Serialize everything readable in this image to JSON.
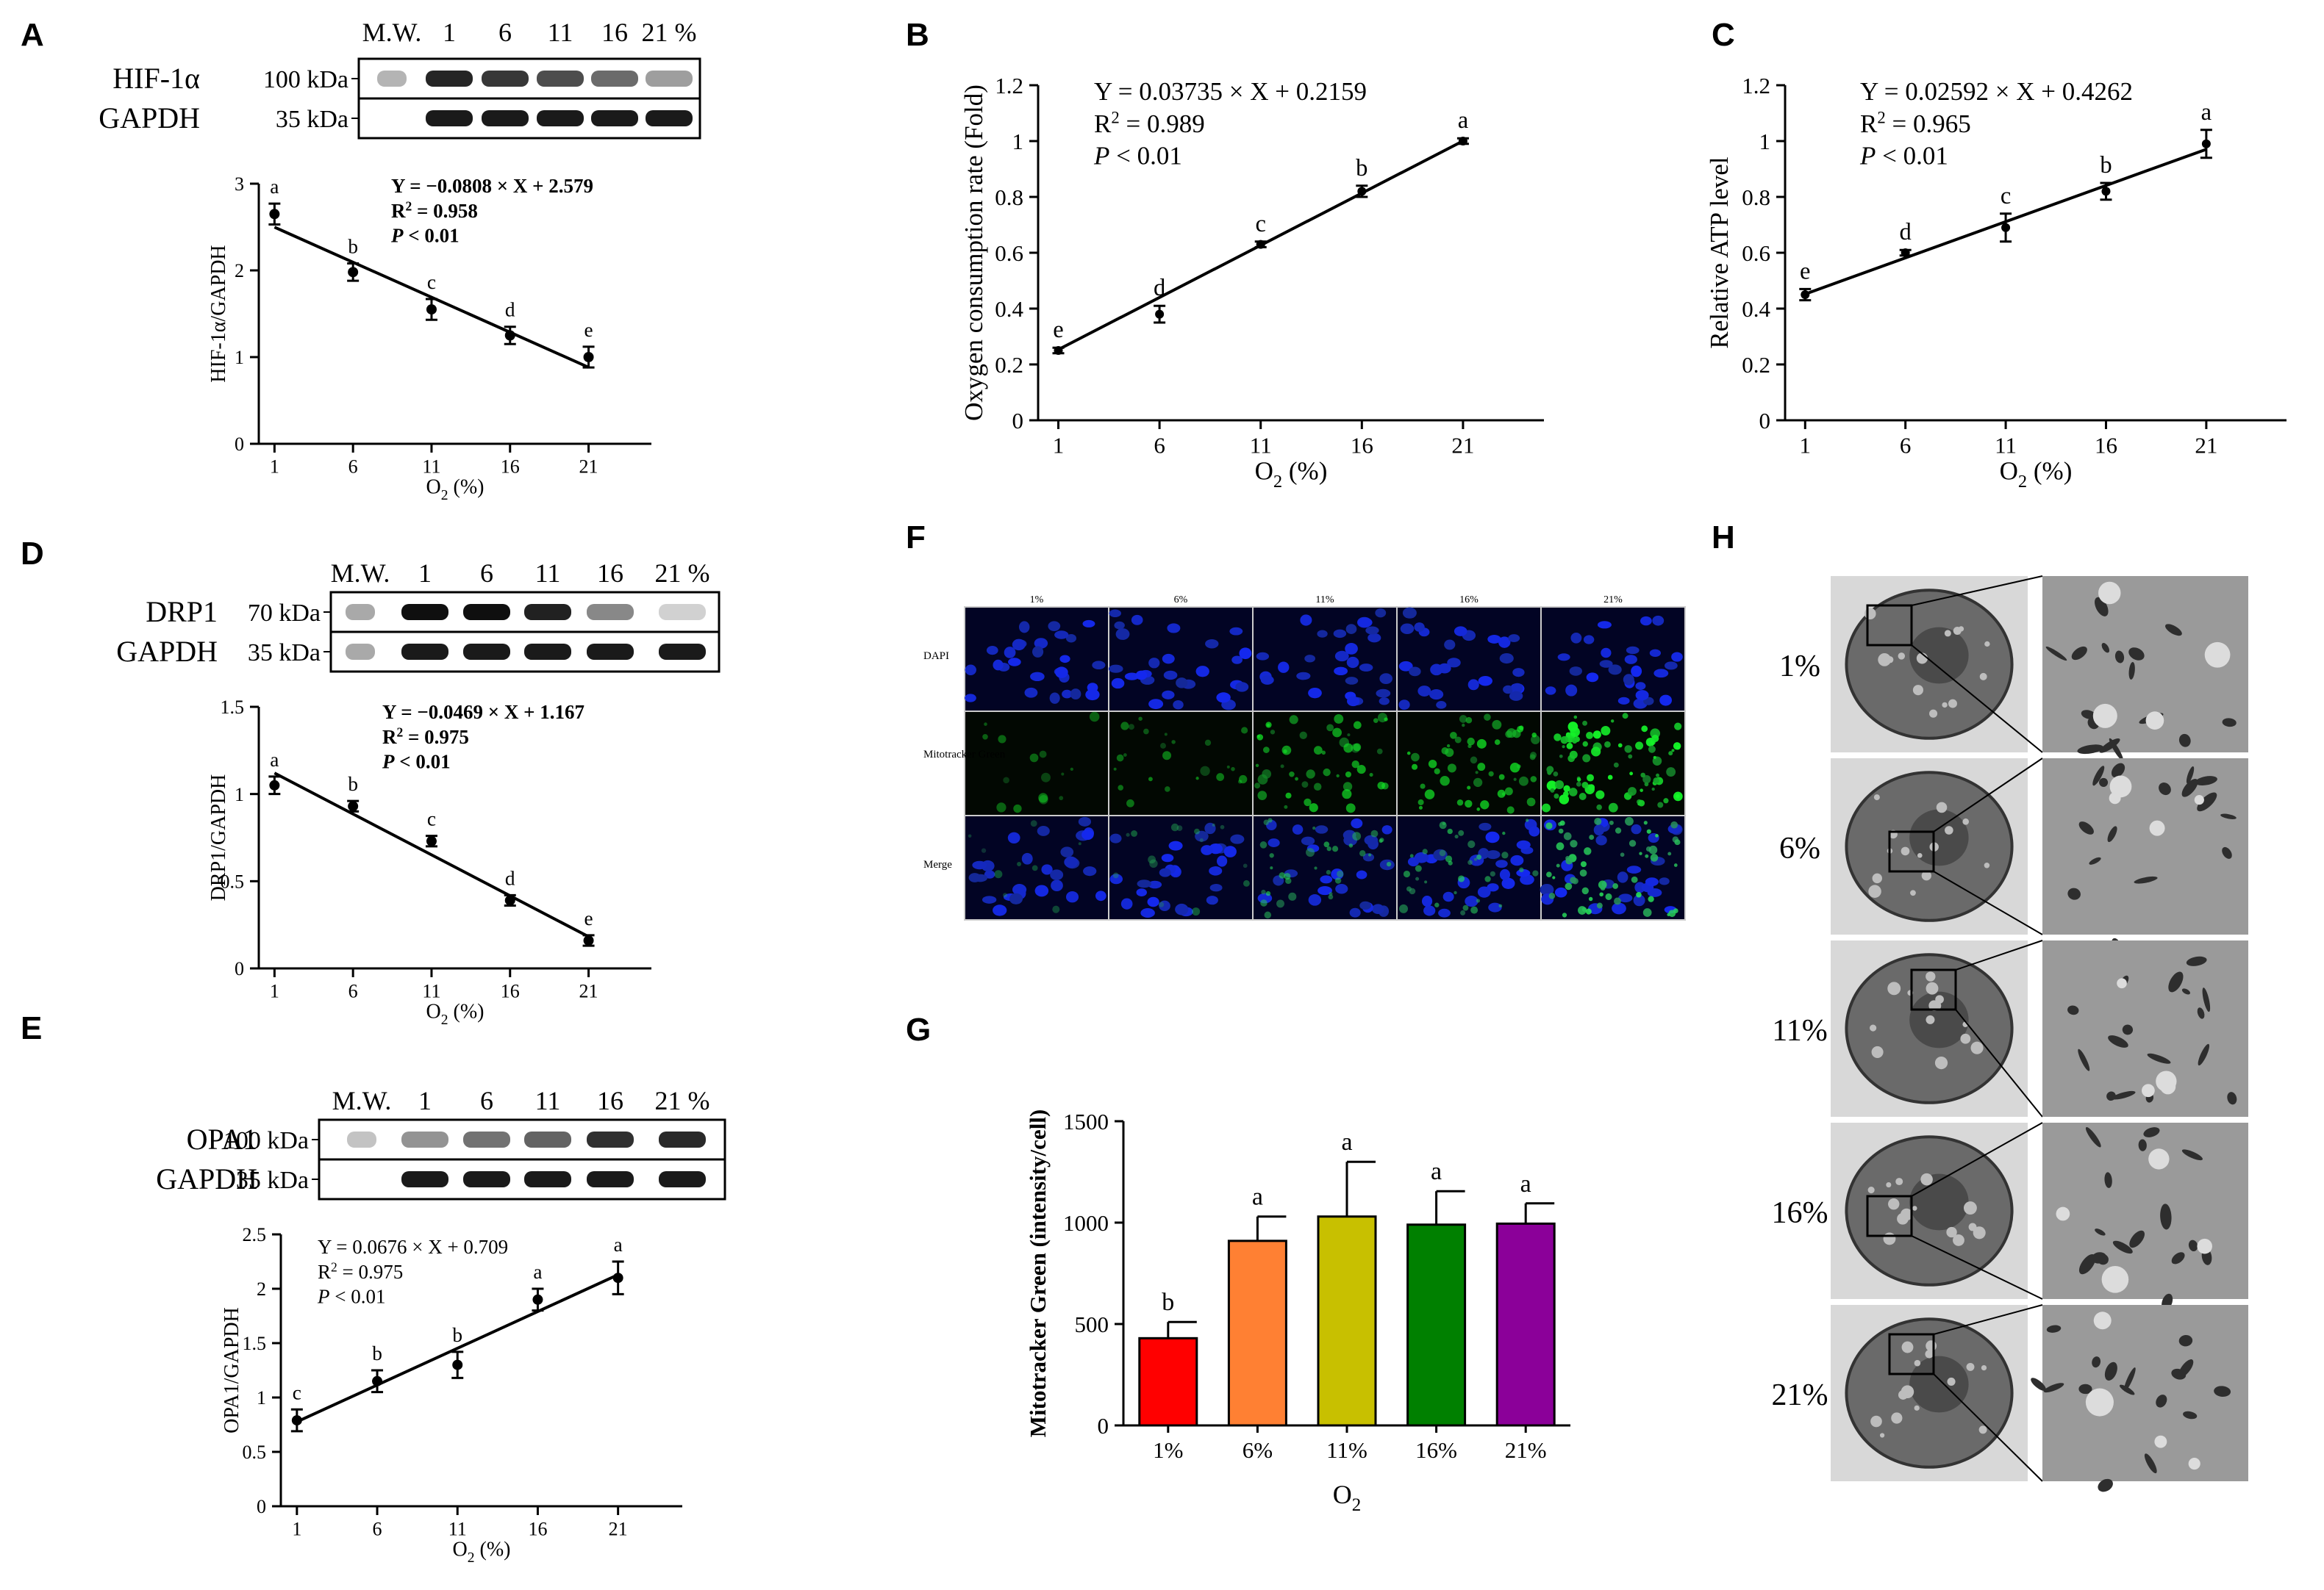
{
  "figure": {
    "panel_letters": [
      "A",
      "B",
      "C",
      "D",
      "E",
      "F",
      "G",
      "H"
    ],
    "blot_a": {
      "lanes": [
        "M.W.",
        "1",
        "6",
        "11",
        "16",
        "21 %"
      ],
      "rows": [
        {
          "protein": "HIF-1α",
          "mw": "100 kDa"
        },
        {
          "protein": "GAPDH",
          "mw": "35 kDa"
        }
      ],
      "intensities": [
        [
          0.25,
          0.9,
          0.82,
          0.72,
          0.58,
          0.35
        ],
        [
          0,
          0.95,
          0.95,
          0.95,
          0.95,
          0.95
        ]
      ]
    },
    "blot_d": {
      "lanes": [
        "M.W.",
        "1",
        "6",
        "11",
        "16",
        "21 %"
      ],
      "rows": [
        {
          "protein": "DRP1",
          "mw": "70 kDa"
        },
        {
          "protein": "GAPDH",
          "mw": "35 kDa"
        }
      ],
      "intensities": [
        [
          0.3,
          1.0,
          1.0,
          0.92,
          0.45,
          0.12
        ],
        [
          0.3,
          0.95,
          0.95,
          0.95,
          0.95,
          0.95
        ]
      ]
    },
    "blot_e": {
      "lanes": [
        "M.W.",
        "1",
        "6",
        "11",
        "16",
        "21 %"
      ],
      "rows": [
        {
          "protein": "OPA1",
          "mw": "100 kDa"
        },
        {
          "protein": "GAPDH",
          "mw": "35 kDa"
        }
      ],
      "intensities": [
        [
          0.18,
          0.4,
          0.55,
          0.62,
          0.85,
          0.88
        ],
        [
          0,
          0.95,
          0.95,
          0.95,
          0.95,
          0.95
        ]
      ]
    },
    "f_panel": {
      "columns": [
        "1%",
        "6%",
        "11%",
        "16%",
        "21%"
      ],
      "rows": [
        "DAPI",
        "Mitotracker Green",
        "Merge"
      ],
      "green_levels": [
        0.05,
        0.15,
        0.45,
        0.5,
        0.9
      ]
    },
    "h_panel": {
      "rows": [
        "1%",
        "6%",
        "11%",
        "16%",
        "21%"
      ]
    }
  },
  "chart_data": [
    {
      "id": "A",
      "type": "line",
      "x": [
        1,
        6,
        11,
        16,
        21
      ],
      "y": [
        2.65,
        1.98,
        1.55,
        1.25,
        1.0
      ],
      "error": [
        0.12,
        0.1,
        0.12,
        0.1,
        0.12
      ],
      "letters": [
        "a",
        "b",
        "c",
        "d",
        "e"
      ],
      "equation": "Y = −0.0808 × X + 2.579",
      "r2_label": "R",
      "r2_sup": "2",
      "r2_value": " = 0.958",
      "p_label": "P",
      "p_value": " < 0.01",
      "fit": {
        "slope": -0.0808,
        "intercept": 2.579
      },
      "ylabel": "HIF-1α/GAPDH",
      "xlabel_main": "O",
      "xlabel_sub": "2",
      "xlabel_tail": "  (%)",
      "ylim": [
        0,
        3
      ],
      "yticks": [
        0,
        1,
        2,
        3
      ],
      "xlim": [
        0,
        25
      ],
      "xticks": [
        1,
        6,
        11,
        16,
        21
      ]
    },
    {
      "id": "B",
      "type": "line",
      "x": [
        1,
        6,
        11,
        16,
        21
      ],
      "y": [
        0.25,
        0.38,
        0.63,
        0.82,
        1.0
      ],
      "error": [
        0.01,
        0.03,
        0.01,
        0.02,
        0.01
      ],
      "letters": [
        "e",
        "d",
        "c",
        "b",
        "a"
      ],
      "equation": "Y = 0.03735 × X + 0.2159",
      "r2_label": "R",
      "r2_sup": "2",
      "r2_value": " = 0.989",
      "p_label": "P",
      "p_value": " < 0.01",
      "fit": {
        "slope": 0.03735,
        "intercept": 0.2159
      },
      "ylabel": "Oxygen consumption rate (Fold)",
      "xlabel_main": "O",
      "xlabel_sub": "2",
      "xlabel_tail": "  (%)",
      "ylim": [
        0,
        1.2
      ],
      "yticks": [
        0.0,
        0.2,
        0.4,
        0.6,
        0.8,
        1.0,
        1.2
      ],
      "xlim": [
        0,
        25
      ],
      "xticks": [
        1,
        6,
        11,
        16,
        21
      ]
    },
    {
      "id": "C",
      "type": "line",
      "x": [
        1,
        6,
        11,
        16,
        21
      ],
      "y": [
        0.45,
        0.6,
        0.69,
        0.82,
        0.99
      ],
      "error": [
        0.02,
        0.01,
        0.05,
        0.03,
        0.05
      ],
      "letters": [
        "e",
        "d",
        "c",
        "b",
        "a"
      ],
      "equation": "Y = 0.02592 × X + 0.4262",
      "r2_label": "R",
      "r2_sup": "2",
      "r2_value": " = 0.965",
      "p_label": "P",
      "p_value": " < 0.01",
      "fit": {
        "slope": 0.02592,
        "intercept": 0.4262
      },
      "ylabel": "Relative ATP level",
      "xlabel_main": "O",
      "xlabel_sub": "2",
      "xlabel_tail": "  (%)",
      "ylim": [
        0,
        1.2
      ],
      "yticks": [
        0.0,
        0.2,
        0.4,
        0.6,
        0.8,
        1.0,
        1.2
      ],
      "xlim": [
        0,
        25
      ],
      "xticks": [
        1,
        6,
        11,
        16,
        21
      ]
    },
    {
      "id": "D",
      "type": "line",
      "x": [
        1,
        6,
        11,
        16,
        21
      ],
      "y": [
        1.05,
        0.93,
        0.73,
        0.39,
        0.16
      ],
      "error": [
        0.05,
        0.03,
        0.03,
        0.03,
        0.03
      ],
      "letters": [
        "a",
        "b",
        "c",
        "d",
        "e"
      ],
      "equation": "Y = −0.0469 × X + 1.167",
      "r2_label": "R",
      "r2_sup": "2",
      "r2_value": " = 0.975",
      "p_label": "P",
      "p_value": " < 0.01",
      "fit": {
        "slope": -0.0469,
        "intercept": 1.167
      },
      "ylabel": "DRP1/GAPDH",
      "xlabel_main": "O",
      "xlabel_sub": "2",
      "xlabel_tail": "  (%)",
      "ylim": [
        0,
        1.5
      ],
      "yticks": [
        0.0,
        0.5,
        1.0,
        1.5
      ],
      "xlim": [
        0,
        25
      ],
      "xticks": [
        1,
        6,
        11,
        16,
        21
      ]
    },
    {
      "id": "E",
      "type": "line",
      "x": [
        1,
        6,
        11,
        16,
        21
      ],
      "y": [
        0.79,
        1.15,
        1.3,
        1.9,
        2.1
      ],
      "error": [
        0.1,
        0.1,
        0.12,
        0.1,
        0.15
      ],
      "letters": [
        "c",
        "b",
        "b",
        "a",
        "a"
      ],
      "equation": "Y = 0.0676 × X + 0.709",
      "r2_label": "R",
      "r2_sup": "2",
      "r2_value": " = 0.975",
      "p_label": "P",
      "p_value": " < 0.01",
      "fit": {
        "slope": 0.0676,
        "intercept": 0.709
      },
      "ylabel": "OPA1/GAPDH",
      "xlabel_main": "O",
      "xlabel_sub": "2",
      "xlabel_tail": "  (%)",
      "ylim": [
        0,
        2.5
      ],
      "yticks": [
        0.0,
        0.5,
        1.0,
        1.5,
        2.0,
        2.5
      ],
      "xlim": [
        0,
        25
      ],
      "xticks": [
        1,
        6,
        11,
        16,
        21
      ]
    },
    {
      "id": "G",
      "type": "bar",
      "categories": [
        "1%",
        "6%",
        "11%",
        "16%",
        "21%"
      ],
      "values": [
        430,
        910,
        1030,
        990,
        995
      ],
      "error": [
        80,
        120,
        270,
        165,
        100
      ],
      "letters": [
        "b",
        "a",
        "a",
        "a",
        "a"
      ],
      "colors": [
        "#ff0000",
        "#ff8033",
        "#c8c000",
        "#008000",
        "#8b0099"
      ],
      "ylabel": "Mitotracker Green (intensity/cell)",
      "xlabel_main": "O",
      "xlabel_sub": "2",
      "xlabel_tail": "",
      "ylim": [
        0,
        1500
      ],
      "yticks": [
        0,
        500,
        1000,
        1500
      ]
    }
  ]
}
